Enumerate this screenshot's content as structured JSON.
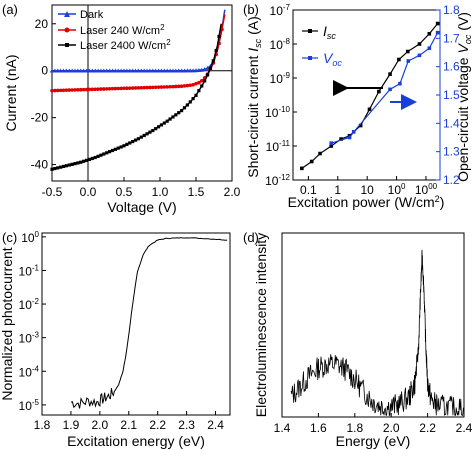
{
  "colors": {
    "blue": "#1a3fd8",
    "red": "#e00000",
    "black": "#000000",
    "axis_right": "#1a3fd8"
  },
  "chart_data": [
    {
      "panel": "(a)",
      "type": "line",
      "xlabel": "Voltage (V)",
      "ylabel": "Current (nA)",
      "xlim": [
        -0.5,
        2.0
      ],
      "ylim": [
        -47,
        28
      ],
      "xticks": [
        "-0.5",
        "0.0",
        "0.5",
        "1.0",
        "1.5",
        "2.0"
      ],
      "yticks": [
        "-40",
        "-20",
        "0",
        "20"
      ],
      "legend_position": "top-left",
      "series": [
        {
          "name": "Dark",
          "color": "#1a3fd8",
          "marker": "triangle",
          "x": [
            -0.5,
            -0.3,
            -0.1,
            0.1,
            0.3,
            0.5,
            0.7,
            0.9,
            1.1,
            1.3,
            1.5,
            1.6,
            1.65,
            1.7,
            1.75,
            1.8,
            1.85,
            1.9
          ],
          "y": [
            0,
            0,
            0,
            0,
            0,
            0,
            0,
            0,
            0,
            0,
            0.1,
            0.4,
            0.9,
            2,
            4.5,
            9,
            16,
            26
          ]
        },
        {
          "name": "Laser 240 W/cm2",
          "color": "#e00000",
          "marker": "circle",
          "x": [
            -0.5,
            -0.3,
            -0.1,
            0.1,
            0.3,
            0.5,
            0.7,
            0.9,
            1.1,
            1.3,
            1.45,
            1.55,
            1.6,
            1.65,
            1.7,
            1.75,
            1.8,
            1.85,
            1.9
          ],
          "y": [
            -8.5,
            -8.3,
            -8.1,
            -7.9,
            -7.7,
            -7.5,
            -7.3,
            -7.1,
            -6.9,
            -6.6,
            -6.1,
            -5,
            -3.8,
            -2,
            0.5,
            4,
            9,
            16,
            24
          ]
        },
        {
          "name": "Laser 2400 W/cm2",
          "color": "#000000",
          "marker": "square",
          "x": [
            -0.5,
            -0.3,
            -0.1,
            0.1,
            0.3,
            0.5,
            0.7,
            0.9,
            1.1,
            1.3,
            1.4,
            1.5,
            1.55,
            1.6,
            1.65,
            1.7,
            1.75,
            1.8,
            1.85
          ],
          "y": [
            -42,
            -40.5,
            -39,
            -37,
            -34.5,
            -32,
            -29,
            -25.5,
            -21.5,
            -17,
            -14,
            -10.5,
            -8,
            -5.5,
            -2.5,
            1,
            5,
            11,
            20
          ]
        }
      ]
    },
    {
      "panel": "(b)",
      "type": "line",
      "xlabel": "Excitation power (W/cm²)",
      "ylabel": "Short-circuit current Isc (A)",
      "ylabel_right": "Open-circuit voltage Voc (V)",
      "xscale": "log",
      "xlim": [
        0.03,
        3000
      ],
      "xticks": [
        "0.1",
        "1",
        "10",
        "100",
        "1000"
      ],
      "yscale": "log",
      "ylim": [
        1e-12,
        1e-07
      ],
      "yticks": [
        "10-12",
        "10-11",
        "10-10",
        "10-9",
        "10-8",
        "10-7"
      ],
      "ylim_right": [
        1.2,
        1.8
      ],
      "yticks_right": [
        "1.2",
        "1.3",
        "1.4",
        "1.5",
        "1.6",
        "1.7",
        "1.8"
      ],
      "legend_position": "top-left",
      "series": [
        {
          "name": "Isc",
          "color": "#000000",
          "axis": "left",
          "x": [
            0.06,
            0.13,
            0.25,
            0.6,
            1.3,
            2.5,
            6,
            12,
            25,
            60,
            120,
            240,
            600,
            1300,
            2500
          ],
          "y": [
            2.2e-12,
            3.5e-12,
            6e-12,
            1e-11,
            1.6e-11,
            2e-11,
            4e-11,
            1.2e-10,
            4e-10,
            1.3e-09,
            3.5e-09,
            6e-09,
            1e-08,
            2e-08,
            4e-08
          ]
        },
        {
          "name": "Voc",
          "color": "#1a3fd8",
          "axis": "right",
          "x": [
            0.6,
            2.5,
            3.5,
            60,
            130,
            250,
            600,
            1300,
            2500
          ],
          "y": [
            1.33,
            1.35,
            1.37,
            1.52,
            1.54,
            1.62,
            1.64,
            1.665,
            1.72
          ]
        }
      ],
      "annotations": [
        {
          "type": "arrow",
          "direction": "left",
          "color": "#000000"
        },
        {
          "type": "arrow",
          "direction": "right",
          "color": "#1a3fd8"
        }
      ]
    },
    {
      "panel": "(c)",
      "type": "line",
      "xlabel": "Excitation energy (eV)",
      "ylabel": "Normalized photocurrent",
      "xlim": [
        1.8,
        2.45
      ],
      "xticks": [
        "1.8",
        "1.9",
        "2.0",
        "2.1",
        "2.2",
        "2.3",
        "2.4"
      ],
      "yscale": "log",
      "ylim": [
        5e-06,
        1.3
      ],
      "yticks": [
        "10-5",
        "10-4",
        "10-3",
        "10-2",
        "10-1",
        "100"
      ],
      "series": [
        {
          "color": "#000000",
          "x": [
            1.9,
            1.93,
            1.96,
            1.99,
            2.01,
            2.03,
            2.05,
            2.065,
            2.08,
            2.09,
            2.1,
            2.11,
            2.12,
            2.13,
            2.15,
            2.17,
            2.2,
            2.23,
            2.26,
            2.3,
            2.35,
            2.4,
            2.44
          ],
          "y": [
            1.2e-05,
            1.1e-05,
            1.3e-05,
            1.2e-05,
            1.5e-05,
            1.8e-05,
            2.5e-05,
            4e-05,
            0.0001,
            0.0003,
            0.0012,
            0.006,
            0.025,
            0.09,
            0.3,
            0.55,
            0.8,
            0.9,
            0.92,
            0.95,
            0.9,
            0.85,
            0.8
          ]
        }
      ]
    },
    {
      "panel": "(d)",
      "type": "line",
      "xlabel": "Energy (eV)",
      "ylabel": "Electroluminescence intensity",
      "xlim": [
        1.4,
        2.4
      ],
      "xticks": [
        "1.4",
        "1.6",
        "1.8",
        "2.0",
        "2.2",
        "2.4"
      ],
      "series": [
        {
          "color": "#000000",
          "x": [
            1.45,
            1.5,
            1.55,
            1.6,
            1.65,
            1.7,
            1.75,
            1.8,
            1.85,
            1.9,
            1.95,
            2.0,
            2.05,
            2.1,
            2.13,
            2.15,
            2.16,
            2.17,
            2.18,
            2.19,
            2.2,
            2.22,
            2.25,
            2.3,
            2.35,
            2.4
          ],
          "y": [
            0.12,
            0.18,
            0.24,
            0.29,
            0.31,
            0.31,
            0.28,
            0.22,
            0.15,
            0.09,
            0.06,
            0.06,
            0.08,
            0.12,
            0.2,
            0.4,
            0.7,
            0.95,
            0.75,
            0.42,
            0.2,
            0.1,
            0.07,
            0.06,
            0.05,
            0.05
          ]
        }
      ]
    }
  ]
}
